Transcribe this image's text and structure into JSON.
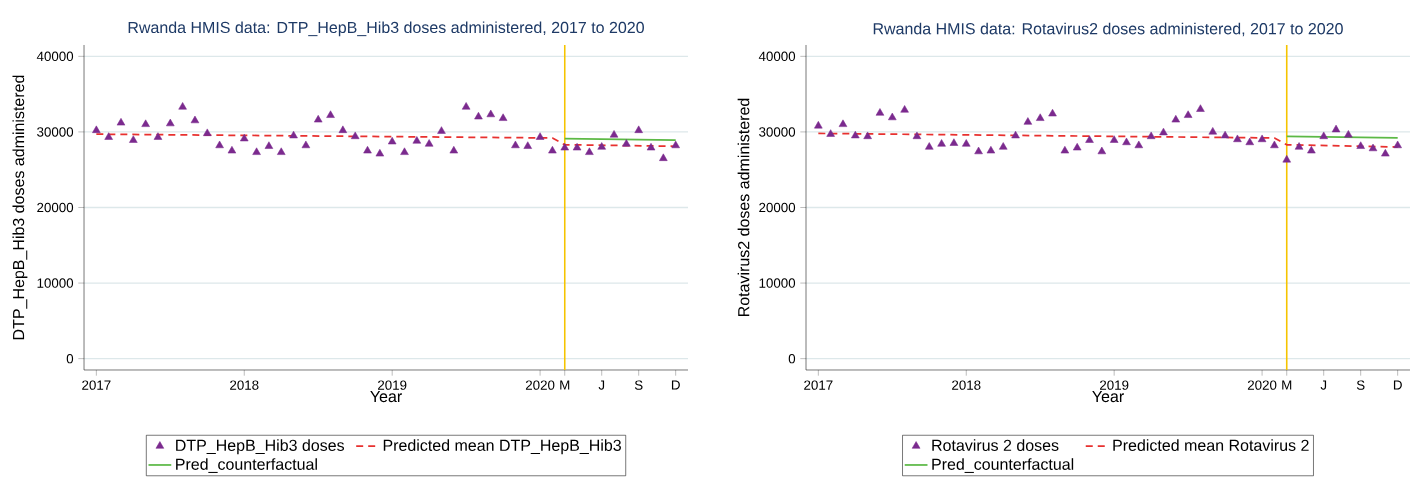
{
  "chart_data": [
    {
      "type": "line",
      "title": "Rwanda HMIS data: DTP_HepB_Hib3 doses administered, 2017 to 2020",
      "xlabel": "Year",
      "ylabel": "DTP_HepB_Hib3 doses administered",
      "x": [
        "2017-01",
        "2017-02",
        "2017-03",
        "2017-04",
        "2017-05",
        "2017-06",
        "2017-07",
        "2017-08",
        "2017-09",
        "2017-10",
        "2017-11",
        "2017-12",
        "2018-01",
        "2018-02",
        "2018-03",
        "2018-04",
        "2018-05",
        "2018-06",
        "2018-07",
        "2018-08",
        "2018-09",
        "2018-10",
        "2018-11",
        "2018-12",
        "2019-01",
        "2019-02",
        "2019-03",
        "2019-04",
        "2019-05",
        "2019-06",
        "2019-07",
        "2019-08",
        "2019-09",
        "2019-10",
        "2019-11",
        "2019-12",
        "2020-01",
        "2020-02",
        "2020-03",
        "2020-04",
        "2020-05",
        "2020-06",
        "2020-07",
        "2020-08",
        "2020-09",
        "2020-10",
        "2020-11",
        "2020-12"
      ],
      "series": [
        {
          "name": "DTP_HepB_Hib3 doses",
          "type": "scatter",
          "marker": "triangle",
          "color": "#7b2a8e",
          "values": [
            30200,
            29300,
            31200,
            28900,
            31000,
            29300,
            31100,
            33300,
            31500,
            29800,
            28200,
            27500,
            29100,
            27300,
            28100,
            27300,
            29500,
            28200,
            31600,
            32200,
            30200,
            29400,
            27500,
            27100,
            28700,
            27300,
            28800,
            28400,
            30100,
            27500,
            33300,
            32000,
            32300,
            31800,
            28200,
            28100,
            29300,
            27500,
            27900,
            27900,
            27300,
            28000,
            29600,
            28400,
            30200,
            27900,
            26500,
            28200
          ]
        },
        {
          "name": "Predicted mean DTP_HepB_Hib3",
          "type": "line",
          "line_style": "dashed",
          "color": "#e8312f",
          "x": [
            "2017-01",
            "2020-02",
            "2020-03",
            "2020-12"
          ],
          "values": [
            29700,
            29200,
            28300,
            28100
          ]
        },
        {
          "name": "Pred_counterfactual",
          "type": "line",
          "line_style": "solid",
          "color": "#5cb946",
          "x": [
            "2020-03",
            "2020-12"
          ],
          "values": [
            29100,
            28900
          ]
        }
      ],
      "xlim": [
        "2016-12",
        "2021-01"
      ],
      "xticks": [
        {
          "value": "2017-01",
          "label": "2017"
        },
        {
          "value": "2018-01",
          "label": "2018"
        },
        {
          "value": "2019-01",
          "label": "2019"
        },
        {
          "value": "2020-01",
          "label": "2020"
        },
        {
          "value": "2020-03",
          "label": "M"
        },
        {
          "value": "2020-06",
          "label": "J"
        },
        {
          "value": "2020-09",
          "label": "S"
        },
        {
          "value": "2020-12",
          "label": "D"
        }
      ],
      "ylim": [
        -1500,
        41500
      ],
      "yticks": [
        0,
        10000,
        20000,
        30000,
        40000
      ],
      "grid": "y",
      "legend": "bottom",
      "ref_lines": [
        {
          "axis": "x",
          "value": "2020-03",
          "color": "#f5c400"
        }
      ]
    },
    {
      "type": "line",
      "title": "Rwanda HMIS data: Rotavirus2 doses administered, 2017 to 2020",
      "xlabel": "Year",
      "ylabel": "Rotavirus2 doses administered",
      "x": [
        "2017-01",
        "2017-02",
        "2017-03",
        "2017-04",
        "2017-05",
        "2017-06",
        "2017-07",
        "2017-08",
        "2017-09",
        "2017-10",
        "2017-11",
        "2017-12",
        "2018-01",
        "2018-02",
        "2018-03",
        "2018-04",
        "2018-05",
        "2018-06",
        "2018-07",
        "2018-08",
        "2018-09",
        "2018-10",
        "2018-11",
        "2018-12",
        "2019-01",
        "2019-02",
        "2019-03",
        "2019-04",
        "2019-05",
        "2019-06",
        "2019-07",
        "2019-08",
        "2019-09",
        "2019-10",
        "2019-11",
        "2019-12",
        "2020-01",
        "2020-02",
        "2020-03",
        "2020-04",
        "2020-05",
        "2020-06",
        "2020-07",
        "2020-08",
        "2020-09",
        "2020-10",
        "2020-11",
        "2020-12"
      ],
      "series": [
        {
          "name": "Rotavirus 2 doses",
          "type": "scatter",
          "marker": "triangle",
          "color": "#7b2a8e",
          "values": [
            30800,
            29700,
            31000,
            29500,
            29400,
            32500,
            31900,
            32900,
            29400,
            28000,
            28400,
            28500,
            28400,
            27400,
            27500,
            28000,
            29500,
            31300,
            31800,
            32400,
            27500,
            27900,
            28900,
            27400,
            28900,
            28600,
            28200,
            29400,
            29900,
            31600,
            32200,
            33000,
            30000,
            29500,
            29000,
            28600,
            29000,
            28200,
            26300,
            28000,
            27500,
            29400,
            30300,
            29600,
            28100,
            27800,
            27100,
            28200
          ]
        },
        {
          "name": "Predicted mean Rotavirus 2",
          "type": "line",
          "line_style": "dashed",
          "color": "#e8312f",
          "x": [
            "2017-01",
            "2020-02",
            "2020-03",
            "2020-12"
          ],
          "values": [
            29800,
            29200,
            28300,
            28000
          ]
        },
        {
          "name": "Pred_counterfactual",
          "type": "line",
          "line_style": "solid",
          "color": "#5cb946",
          "x": [
            "2020-03",
            "2020-12"
          ],
          "values": [
            29400,
            29200
          ]
        }
      ],
      "xlim": [
        "2016-12",
        "2021-01"
      ],
      "xticks": [
        {
          "value": "2017-01",
          "label": "2017"
        },
        {
          "value": "2018-01",
          "label": "2018"
        },
        {
          "value": "2019-01",
          "label": "2019"
        },
        {
          "value": "2020-01",
          "label": "2020"
        },
        {
          "value": "2020-03",
          "label": "M"
        },
        {
          "value": "2020-06",
          "label": "J"
        },
        {
          "value": "2020-09",
          "label": "S"
        },
        {
          "value": "2020-12",
          "label": "D"
        }
      ],
      "ylim": [
        -1500,
        41500
      ],
      "yticks": [
        0,
        10000,
        20000,
        30000,
        40000
      ],
      "grid": "y",
      "legend": "bottom",
      "ref_lines": [
        {
          "axis": "x",
          "value": "2020-03",
          "color": "#f5c400"
        }
      ]
    }
  ]
}
